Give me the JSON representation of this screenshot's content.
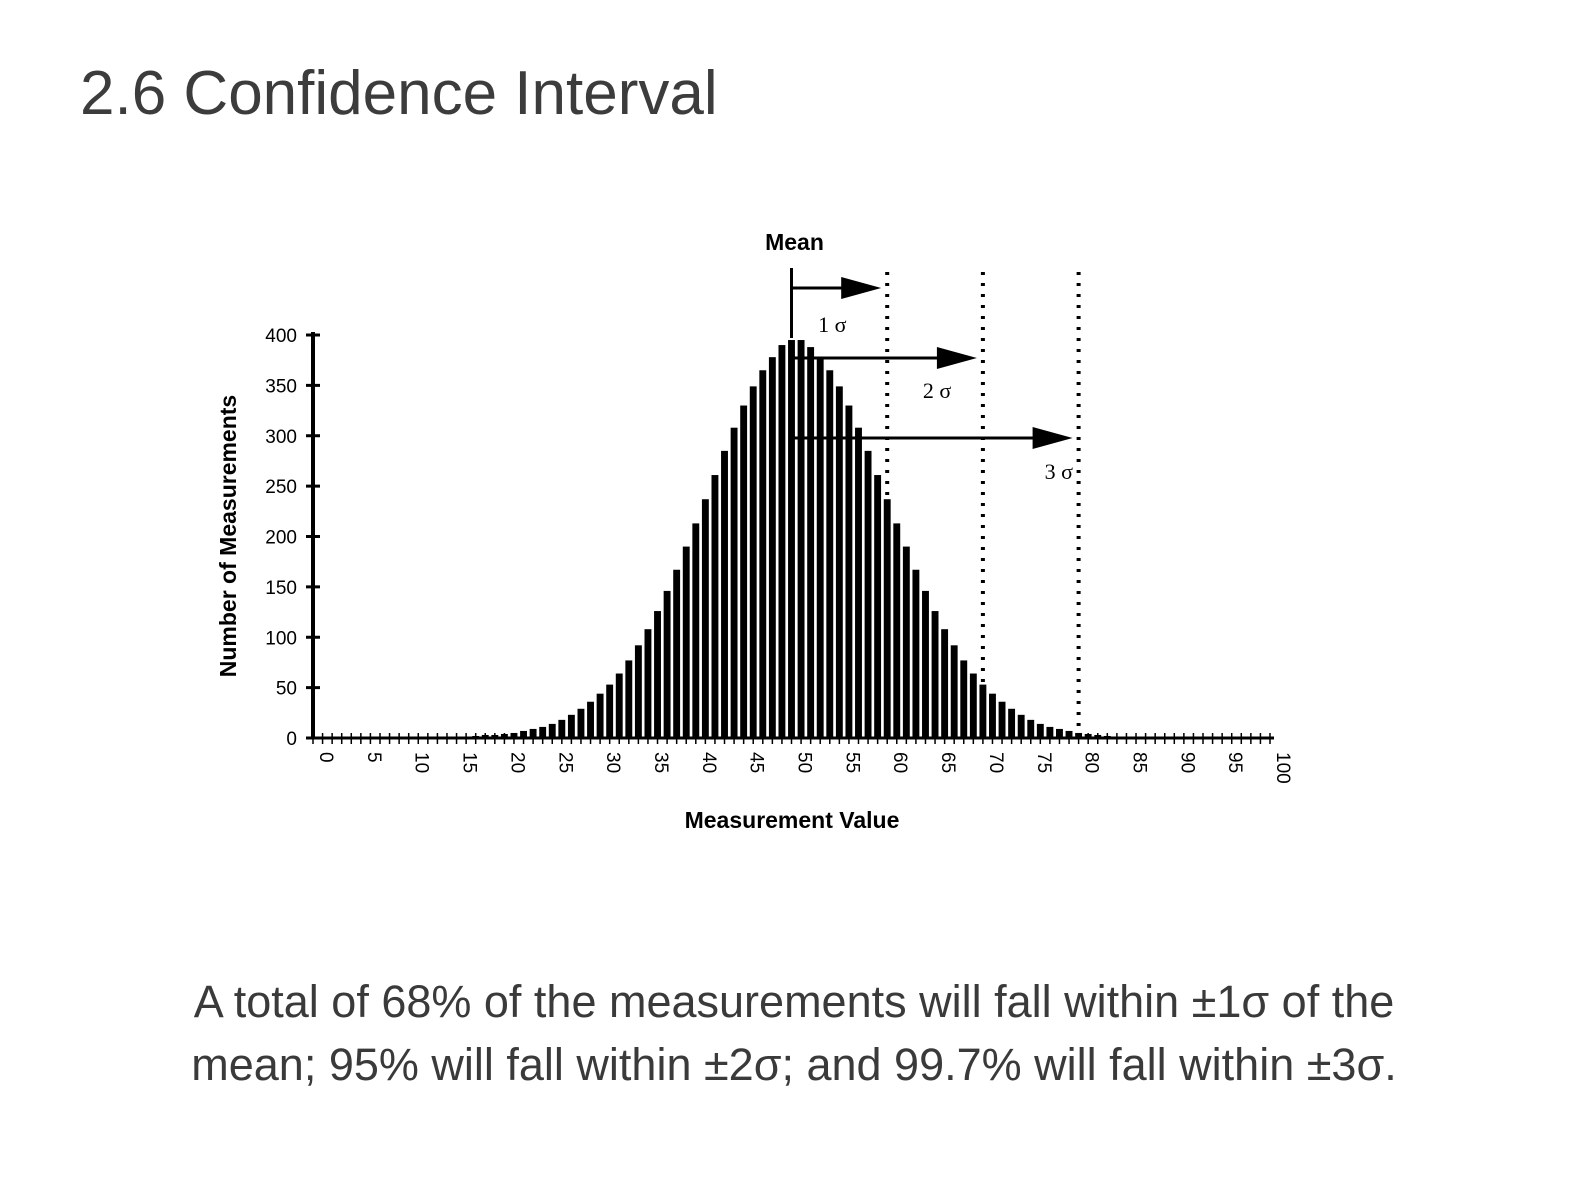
{
  "slide": {
    "title": "2.6 Confidence Interval",
    "caption_line1": "A total of 68% of the measurements will fall within ±1σ of the",
    "caption_line2": "mean; 95% will fall within ±2σ; and 99.7% will fall within ±3σ."
  },
  "chart_data": {
    "type": "bar",
    "title": "",
    "xlabel": "Measurement Value",
    "ylabel": "Number of Measurements",
    "xlim": [
      0,
      100
    ],
    "ylim": [
      0,
      400
    ],
    "xticks": [
      0,
      5,
      10,
      15,
      20,
      25,
      30,
      35,
      40,
      45,
      50,
      55,
      60,
      65,
      70,
      75,
      80,
      85,
      90,
      95,
      100
    ],
    "yticks": [
      0,
      50,
      100,
      150,
      200,
      250,
      300,
      350,
      400
    ],
    "bar_color": "#000000",
    "x": [
      17,
      18,
      19,
      20,
      21,
      22,
      23,
      24,
      25,
      26,
      27,
      28,
      29,
      30,
      31,
      32,
      33,
      34,
      35,
      36,
      37,
      38,
      39,
      40,
      41,
      42,
      43,
      44,
      45,
      46,
      47,
      48,
      49,
      50,
      51,
      52,
      53,
      54,
      55,
      56,
      57,
      58,
      59,
      60,
      61,
      62,
      63,
      64,
      65,
      66,
      67,
      68,
      69,
      70,
      71,
      72,
      73,
      74,
      75,
      76,
      77,
      78,
      79,
      80,
      81,
      82,
      83
    ],
    "values": [
      2,
      3,
      3,
      4,
      5,
      7,
      9,
      11,
      14,
      18,
      23,
      29,
      36,
      44,
      53,
      64,
      77,
      92,
      108,
      126,
      146,
      167,
      190,
      213,
      237,
      261,
      285,
      308,
      330,
      349,
      365,
      378,
      390,
      395,
      395,
      388,
      378,
      365,
      349,
      330,
      308,
      285,
      261,
      237,
      213,
      190,
      167,
      146,
      126,
      108,
      92,
      77,
      64,
      53,
      44,
      36,
      29,
      23,
      18,
      14,
      11,
      9,
      7,
      5,
      4,
      3,
      2
    ],
    "mean": 50,
    "mean_label": "Mean",
    "sigma": 10,
    "sigma_markers": [
      {
        "label": "1 σ",
        "x_end": 60
      },
      {
        "label": "2 σ",
        "x_end": 70
      },
      {
        "label": "3 σ",
        "x_end": 80
      }
    ],
    "grid": false,
    "legend": "none"
  }
}
